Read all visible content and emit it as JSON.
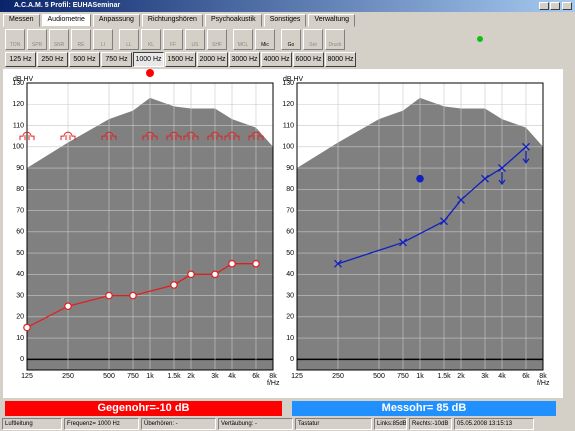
{
  "window": {
    "title": "A.C.A.M. 5  Profil: EUHASeminar"
  },
  "tabs": [
    "Messen",
    "Audiometrie",
    "Anpassung",
    "Richtungshören",
    "Psychoakustik",
    "Sonstiges",
    "Verwaltung"
  ],
  "active_tab": 1,
  "toolbar": [
    "TON",
    "SPR",
    "SNR",
    "RE",
    "LI",
    "LL",
    "KL",
    "FF",
    "US",
    "SHF",
    "MCL",
    "Mic",
    "Go",
    "Set",
    "Druck"
  ],
  "toolbar_active": [
    false,
    false,
    false,
    false,
    false,
    false,
    false,
    false,
    false,
    false,
    false,
    true,
    true,
    false,
    false
  ],
  "frequencies": [
    "125 Hz",
    "250 Hz",
    "500 Hz",
    "750 Hz",
    "1000 Hz",
    "1500 Hz",
    "2000 Hz",
    "3000 Hz",
    "4000 Hz",
    "6000 Hz",
    "8000 Hz"
  ],
  "active_frequency": 4,
  "chart_data": [
    {
      "type": "line",
      "xscale": "log",
      "xlim": [
        125,
        8000
      ],
      "ylim": [
        -5,
        130
      ],
      "y_label": "dB HV",
      "x_label": "f/Hz",
      "xticks": [
        125,
        250,
        500,
        750,
        {
          "value": 1000,
          "label": "1k"
        },
        {
          "value": 1500,
          "label": "1.5k"
        },
        {
          "value": 2000,
          "label": "2k"
        },
        {
          "value": 3000,
          "label": "3k"
        },
        {
          "value": 4000,
          "label": "4k"
        },
        {
          "value": 6000,
          "label": "6k"
        },
        {
          "value": 8000,
          "label": "8k"
        }
      ],
      "yticks": [
        0,
        10,
        20,
        30,
        40,
        50,
        60,
        70,
        80,
        90,
        100,
        110,
        120,
        130
      ],
      "grid": true,
      "series": [
        {
          "marker": "area",
          "color": "#808080",
          "x": [
            125,
            250,
            500,
            750,
            1000,
            1500,
            2000,
            3000,
            4000,
            6000,
            8000
          ],
          "values": [
            90,
            102,
            113,
            117,
            123,
            119,
            118,
            118,
            113,
            109,
            100
          ]
        },
        {
          "marker": "circle",
          "line": true,
          "color": "#e02020",
          "x": [
            125,
            250,
            500,
            750,
            1500,
            2000,
            3000,
            4000,
            6000
          ],
          "values": [
            15,
            25,
            30,
            30,
            35,
            40,
            40,
            45,
            45
          ]
        },
        {
          "marker": "bracket",
          "color": "#e02020",
          "x": [
            125,
            250,
            500,
            1000,
            1500,
            2000,
            3000,
            4000,
            6000
          ],
          "values": [
            105,
            105,
            105,
            105,
            105,
            105,
            105,
            105,
            105
          ]
        }
      ]
    },
    {
      "type": "line",
      "xscale": "log",
      "xlim": [
        125,
        8000
      ],
      "ylim": [
        -5,
        130
      ],
      "y_label": "dB HV",
      "x_label": "f/Hz",
      "xticks": [
        125,
        250,
        500,
        750,
        {
          "value": 1000,
          "label": "1k"
        },
        {
          "value": 1500,
          "label": "1.5k"
        },
        {
          "value": 2000,
          "label": "2k"
        },
        {
          "value": 3000,
          "label": "3k"
        },
        {
          "value": 4000,
          "label": "4k"
        },
        {
          "value": 6000,
          "label": "6k"
        },
        {
          "value": 8000,
          "label": "8k"
        }
      ],
      "yticks": [
        0,
        10,
        20,
        30,
        40,
        50,
        60,
        70,
        80,
        90,
        100,
        110,
        120,
        130
      ],
      "grid": true,
      "series": [
        {
          "marker": "area",
          "color": "#808080",
          "x": [
            125,
            250,
            500,
            750,
            1000,
            1500,
            2000,
            3000,
            4000,
            6000,
            8000
          ],
          "values": [
            90,
            102,
            113,
            117,
            123,
            119,
            118,
            118,
            113,
            109,
            100
          ]
        },
        {
          "marker": "x",
          "line": true,
          "color": "#1020c0",
          "x": [
            250,
            750,
            1500,
            2000,
            3000,
            4000,
            6000
          ],
          "values": [
            45,
            55,
            65,
            75,
            85,
            90,
            100
          ],
          "arrows": [
            false,
            false,
            false,
            false,
            false,
            true,
            true
          ]
        },
        {
          "marker": "dot",
          "color": "#1020c0",
          "x": [
            1000
          ],
          "values": [
            85
          ]
        }
      ]
    }
  ],
  "bottom": {
    "left": "Gegenohr=-10 dB",
    "right": "Messohr= 85 dB"
  },
  "status": [
    "Luftleitung",
    "Frequenz= 1000 Hz",
    "Überhören: -",
    "Vertäubung: -",
    "Tastatur",
    "Links:85dB",
    "Rechts:-10dB",
    "05.05.2008 13:15:13"
  ]
}
